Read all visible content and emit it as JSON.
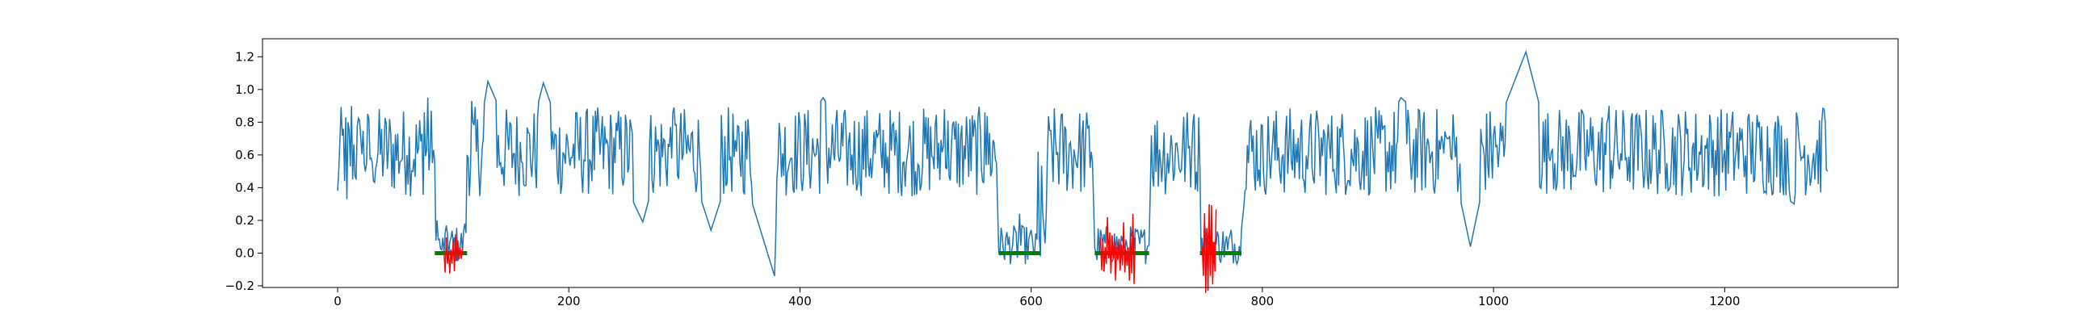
{
  "chart_data": {
    "type": "line",
    "title": "",
    "xlabel": "",
    "ylabel": "",
    "xlim": [
      -65,
      1350
    ],
    "ylim": [
      -0.21,
      1.31
    ],
    "xticks": [
      0,
      200,
      400,
      600,
      800,
      1000,
      1200
    ],
    "xtick_labels": [
      "0",
      "200",
      "400",
      "600",
      "800",
      "1000",
      "1200"
    ],
    "yticks": [
      -0.2,
      0.0,
      0.2,
      0.4,
      0.6,
      0.8,
      1.0,
      1.2
    ],
    "ytick_labels": [
      "−0.2",
      "0.0",
      "0.2",
      "0.4",
      "0.6",
      "0.8",
      "1.0",
      "1.2"
    ],
    "grid": false,
    "series_count": 1290,
    "signal_points": [
      [
        0,
        0.38
      ],
      [
        5,
        0.76
      ],
      [
        8,
        0.33
      ],
      [
        12,
        0.9
      ],
      [
        16,
        0.45
      ],
      [
        20,
        0.7
      ],
      [
        30,
        0.55
      ],
      [
        45,
        0.82
      ],
      [
        60,
        0.6
      ],
      [
        75,
        0.86
      ],
      [
        78,
        0.95
      ],
      [
        82,
        0.55
      ],
      [
        84,
        0.56
      ],
      [
        86,
        0.2
      ],
      [
        90,
        0.02
      ],
      [
        95,
        0.12
      ],
      [
        100,
        0.06
      ],
      [
        105,
        0.0
      ],
      [
        110,
        0.18
      ],
      [
        112,
        0.6
      ],
      [
        116,
        0.93
      ],
      [
        120,
        0.62
      ],
      [
        130,
        1.05
      ],
      [
        160,
        0.55
      ],
      [
        178,
        1.04
      ],
      [
        200,
        0.6
      ],
      [
        240,
        0.55
      ],
      [
        264,
        0.19
      ],
      [
        290,
        0.86
      ],
      [
        323,
        0.14
      ],
      [
        345,
        0.62
      ],
      [
        378,
        -0.14
      ],
      [
        381,
        0.55
      ],
      [
        420,
        0.95
      ],
      [
        440,
        0.72
      ],
      [
        470,
        0.62
      ],
      [
        500,
        0.5
      ],
      [
        525,
        0.88
      ],
      [
        560,
        0.86
      ],
      [
        570,
        0.55
      ],
      [
        572,
        0.0
      ],
      [
        590,
        0.24
      ],
      [
        604,
        0.12
      ],
      [
        606,
        0.62
      ],
      [
        612,
        0.06
      ],
      [
        616,
        0.75
      ],
      [
        640,
        0.52
      ],
      [
        652,
        0.62
      ],
      [
        656,
        0.0
      ],
      [
        680,
        0.12
      ],
      [
        700,
        0.02
      ],
      [
        704,
        0.72
      ],
      [
        720,
        0.58
      ],
      [
        740,
        0.8
      ],
      [
        746,
        0.52
      ],
      [
        750,
        0.18
      ],
      [
        770,
        0.02
      ],
      [
        782,
        0.15
      ],
      [
        788,
        0.55
      ],
      [
        800,
        0.78
      ],
      [
        840,
        0.62
      ],
      [
        860,
        0.84
      ],
      [
        900,
        0.7
      ],
      [
        920,
        0.95
      ],
      [
        960,
        0.7
      ],
      [
        980,
        0.04
      ],
      [
        1000,
        0.72
      ],
      [
        1028,
        1.23
      ],
      [
        1050,
        0.62
      ],
      [
        1100,
        0.9
      ],
      [
        1150,
        0.55
      ],
      [
        1200,
        0.63
      ],
      [
        1260,
        0.3
      ],
      [
        1286,
        0.88
      ],
      [
        1289,
        0.5
      ]
    ],
    "gap_segments": [
      {
        "x": [
          84,
          112
        ],
        "y": 0.0
      },
      {
        "x": [
          572,
          608
        ],
        "y": 0.0
      },
      {
        "x": [
          655,
          702
        ],
        "y": 0.0
      },
      {
        "x": [
          746,
          782
        ],
        "y": 0.0
      }
    ],
    "noise_segments": [
      {
        "x": [
          92,
          108
        ],
        "amplitude": 0.15
      },
      {
        "x": [
          660,
          690
        ],
        "amplitude": 0.3
      },
      {
        "x": [
          748,
          760
        ],
        "amplitude": 0.44
      }
    ],
    "colors": {
      "signal": "#1f77b4",
      "gaps": "#008000",
      "noise": "#ff0000",
      "axes": "#000000"
    }
  }
}
